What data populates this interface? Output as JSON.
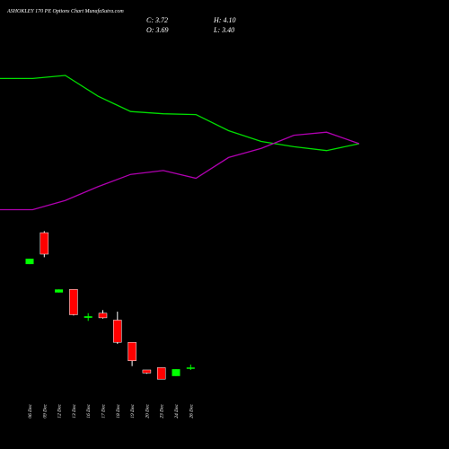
{
  "chart_data": {
    "type": "candlestick",
    "title": "ASHOKLEY 170 PE Options Chart MunafaSutra.com",
    "header": {
      "close": "C: 3.72",
      "high": "H: 4.10",
      "open": "O: 3.69",
      "low": "L: 3.40"
    },
    "categories": [
      "06 Dec",
      "09 Dec",
      "12 Dec",
      "13 Dec",
      "16 Dec",
      "17 Dec",
      "18 Dec",
      "19 Dec",
      "20 Dec",
      "23 Dec",
      "24 Dec",
      "26 Dec"
    ],
    "open": [
      17.2,
      21.3,
      13.5,
      13.9,
      10.2,
      10.8,
      9.9,
      7.0,
      3.4,
      3.7,
      2.6,
      3.69
    ],
    "high": [
      17.9,
      21.5,
      13.9,
      13.9,
      10.8,
      11.2,
      11.0,
      7.0,
      3.4,
      3.7,
      3.5,
      4.1
    ],
    "low": [
      17.2,
      18.1,
      13.5,
      10.5,
      9.8,
      10.1,
      6.8,
      3.9,
      2.9,
      2.2,
      2.6,
      3.4
    ],
    "close": [
      17.9,
      18.5,
      13.9,
      10.6,
      10.4,
      10.2,
      7.0,
      4.6,
      3.0,
      2.2,
      3.5,
      3.72
    ],
    "up_color": "#00ff00",
    "down_color": "#ff0000",
    "lines": [
      {
        "color": "#00dd00",
        "values": [
          41.4,
          41.4,
          41.8,
          39.1,
          37.1,
          36.8,
          36.7,
          34.6,
          33.2,
          32.5,
          32.0,
          32.9
        ]
      },
      {
        "color": "#b000b0",
        "values": [
          24.3,
          24.3,
          25.5,
          27.3,
          28.9,
          29.4,
          28.4,
          31.1,
          32.3,
          34.0,
          34.4,
          32.9
        ]
      }
    ],
    "ylim": [
      0,
      50
    ]
  }
}
